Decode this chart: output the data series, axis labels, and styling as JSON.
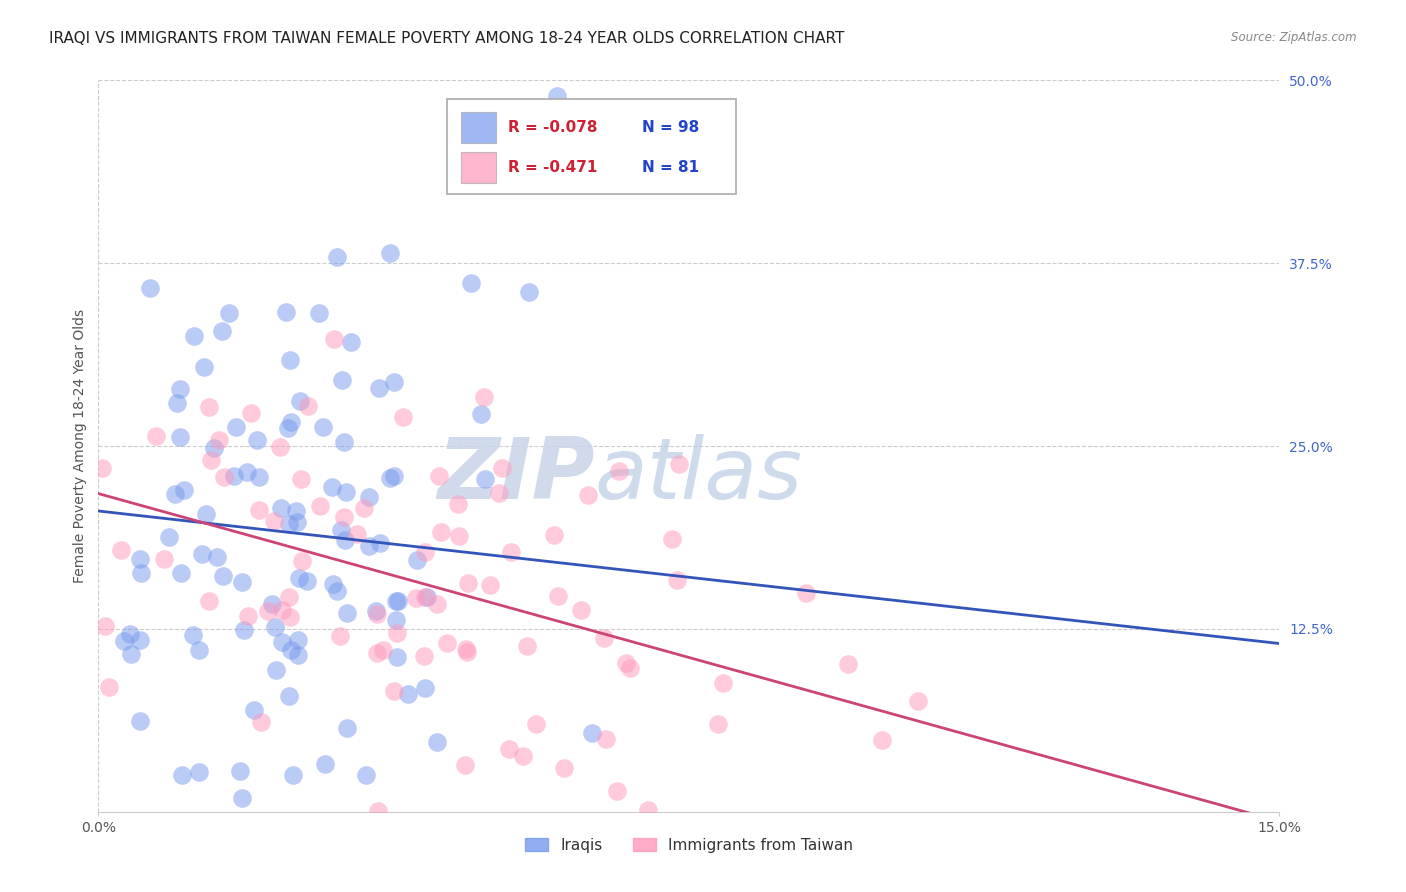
{
  "title": "IRAQI VS IMMIGRANTS FROM TAIWAN FEMALE POVERTY AMONG 18-24 YEAR OLDS CORRELATION CHART",
  "source": "Source: ZipAtlas.com",
  "ylabel": "Female Poverty Among 18-24 Year Olds",
  "xlim": [
    0.0,
    0.15
  ],
  "ylim": [
    0.0,
    0.5
  ],
  "yticks_right": [
    0.0,
    0.125,
    0.25,
    0.375,
    0.5
  ],
  "ytick_labels_right": [
    "",
    "12.5%",
    "25.0%",
    "37.5%",
    "50.0%"
  ],
  "grid_color": "#cccccc",
  "background_color": "#ffffff",
  "series": [
    {
      "name": "Iraqis",
      "R": -0.078,
      "N": 98,
      "color": "#7799ee",
      "legend_label": "Iraqis",
      "line_color": "#3355bb"
    },
    {
      "name": "Immigrants from Taiwan",
      "R": -0.471,
      "N": 81,
      "color": "#ff99bb",
      "legend_label": "Immigrants from Taiwan",
      "line_color": "#cc4477"
    }
  ],
  "legend_R_vals": [
    "-0.078",
    "-0.471"
  ],
  "legend_N_vals": [
    "98",
    "81"
  ],
  "watermark_zip": "ZIP",
  "watermark_atlas": "atlas",
  "title_fontsize": 11,
  "axis_label_fontsize": 10,
  "tick_fontsize": 10,
  "legend_fontsize": 11,
  "right_tick_color": "#4466cc",
  "scatter_size": 180,
  "scatter_alpha": 0.5,
  "line_width": 2.0
}
